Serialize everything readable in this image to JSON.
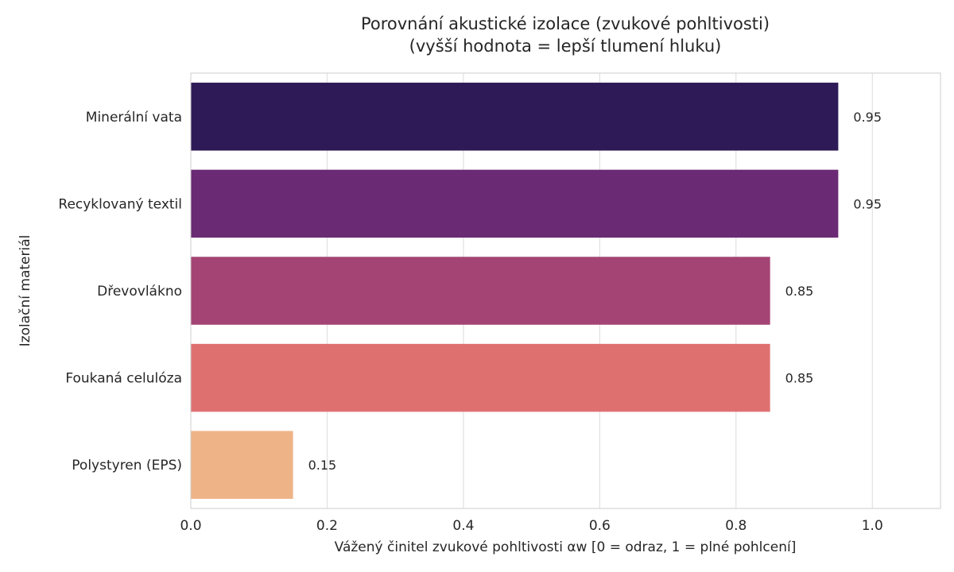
{
  "chart_data": {
    "type": "bar",
    "orientation": "horizontal",
    "title": "Porovnání akustické izolace (zvukové pohltivosti)",
    "subtitle": "(vyšší hodnota = lepší tlumení hluku)",
    "xlabel": "Vážený činitel zvukové pohltivosti αw [0 = odraz, 1 = plné pohlcení]",
    "ylabel": "Izolační materiál",
    "categories": [
      "Minerální vata",
      "Recyklovaný textil",
      "Dřevovlákno",
      "Foukaná celulóza",
      "Polystyren (EPS)"
    ],
    "values": [
      0.95,
      0.95,
      0.85,
      0.85,
      0.15
    ],
    "value_labels": [
      "0.95",
      "0.95",
      "0.85",
      "0.85",
      "0.15"
    ],
    "colors": [
      "#2e1a56",
      "#6a2a74",
      "#a44474",
      "#de7170",
      "#eeb488"
    ],
    "xlim": [
      0,
      1.1
    ],
    "xticks": [
      0.0,
      0.2,
      0.4,
      0.6,
      0.8,
      1.0
    ],
    "xtick_labels": [
      "0.0",
      "0.2",
      "0.4",
      "0.6",
      "0.8",
      "1.0"
    ],
    "grid": true
  }
}
